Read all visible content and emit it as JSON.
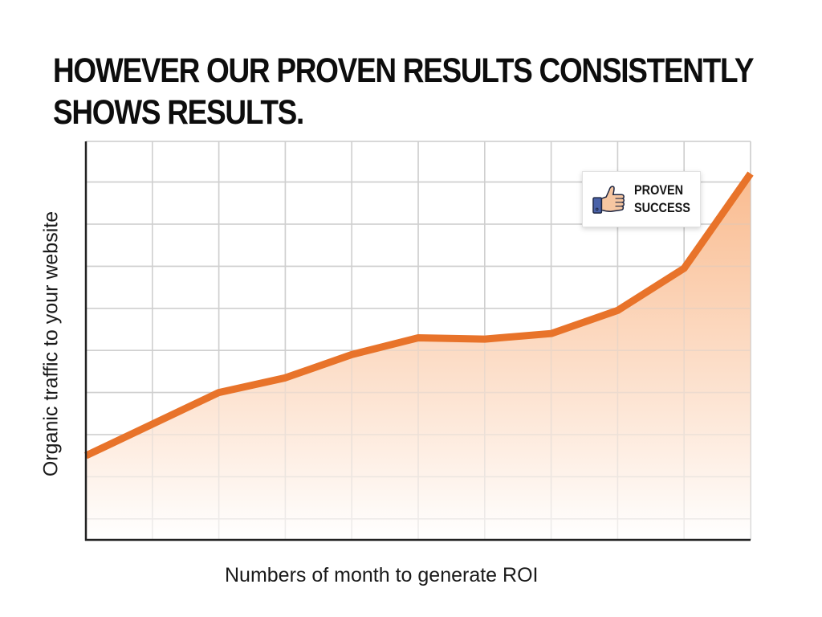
{
  "title": {
    "line1": "HOWEVER OUR PROVEN RESULTS CONSISTENTLY",
    "line2": "SHOWS RESULTS."
  },
  "badge": {
    "icon": "thumbs-up-icon",
    "line1": "PROVEN",
    "line2": "SUCCESS"
  },
  "colors": {
    "line": "#E8732A",
    "fill_top": "#F9B88A",
    "fill_bottom": "#FFFFFF",
    "grid": "#CFCFCF",
    "axis": "#222222"
  },
  "chart_data": {
    "type": "area",
    "title": "HOWEVER OUR PROVEN RESULTS CONSISTENTLY SHOWS RESULTS.",
    "xlabel": "Numbers of month to generate ROI",
    "ylabel": "Organic traffic to your website",
    "x": [
      0,
      1,
      2,
      3,
      4,
      5,
      6,
      7,
      8,
      9,
      10
    ],
    "values": [
      2.0,
      2.75,
      3.5,
      3.85,
      4.4,
      4.8,
      4.77,
      4.9,
      5.45,
      6.45,
      8.7
    ],
    "xlim": [
      0,
      10
    ],
    "ylim": [
      0,
      9.5
    ],
    "grid": true,
    "tick_labels_shown": false,
    "legend": "none",
    "annotation": "PROVEN SUCCESS (thumbs-up badge, upper right)"
  }
}
